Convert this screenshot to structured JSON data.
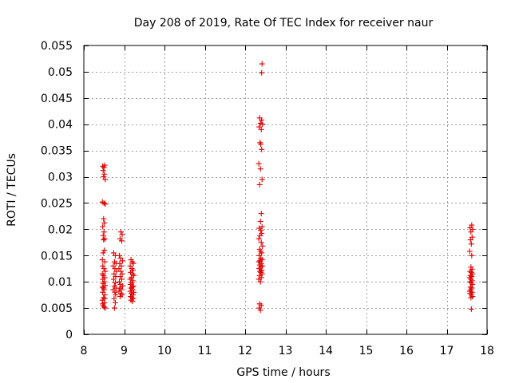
{
  "chart_data": {
    "type": "scatter",
    "title": "Day 208 of 2019, Rate Of TEC Index for receiver naur",
    "xlabel": "GPS time / hours",
    "ylabel": "ROTI / TECUs",
    "xlim": [
      8,
      18
    ],
    "ylim": [
      0,
      0.055
    ],
    "xticks": [
      8,
      9,
      10,
      11,
      12,
      13,
      14,
      15,
      16,
      17,
      18
    ],
    "xtick_labels": [
      "8",
      "9",
      "10",
      "11",
      "12",
      "13",
      "14",
      "15",
      "16",
      "17",
      "18"
    ],
    "yticks": [
      0,
      0.005,
      0.01,
      0.015,
      0.02,
      0.025,
      0.03,
      0.035,
      0.04,
      0.045,
      0.05,
      0.055
    ],
    "ytick_labels": [
      "0",
      "0.005",
      "0.01",
      "0.015",
      "0.02",
      "0.025",
      "0.03",
      "0.035",
      "0.04",
      "0.045",
      "0.05",
      "0.055"
    ],
    "grid": true,
    "marker": "+",
    "color": "#e00000",
    "series": [
      {
        "name": "ROTI",
        "points": [
          [
            8.47,
            0.032
          ],
          [
            8.5,
            0.0318
          ],
          [
            8.52,
            0.0322
          ],
          [
            8.48,
            0.0312
          ],
          [
            8.51,
            0.0305
          ],
          [
            8.53,
            0.0295
          ],
          [
            8.49,
            0.03
          ],
          [
            8.46,
            0.0252
          ],
          [
            8.5,
            0.025
          ],
          [
            8.53,
            0.0248
          ],
          [
            8.49,
            0.022
          ],
          [
            8.51,
            0.0212
          ],
          [
            8.47,
            0.0205
          ],
          [
            8.5,
            0.0195
          ],
          [
            8.48,
            0.0188
          ],
          [
            8.52,
            0.0182
          ],
          [
            8.49,
            0.018
          ],
          [
            8.51,
            0.016
          ],
          [
            8.48,
            0.0155
          ],
          [
            8.46,
            0.0142
          ],
          [
            8.52,
            0.0138
          ],
          [
            8.47,
            0.013
          ],
          [
            8.5,
            0.0125
          ],
          [
            8.53,
            0.012
          ],
          [
            8.46,
            0.0115
          ],
          [
            8.49,
            0.0112
          ],
          [
            8.52,
            0.0108
          ],
          [
            8.47,
            0.0105
          ],
          [
            8.51,
            0.01
          ],
          [
            8.48,
            0.0097
          ],
          [
            8.53,
            0.0093
          ],
          [
            8.46,
            0.009
          ],
          [
            8.5,
            0.0085
          ],
          [
            8.47,
            0.008
          ],
          [
            8.52,
            0.0075
          ],
          [
            8.49,
            0.007
          ],
          [
            8.46,
            0.0065
          ],
          [
            8.51,
            0.006
          ],
          [
            8.48,
            0.0055
          ],
          [
            8.5,
            0.0052
          ],
          [
            8.53,
            0.005
          ],
          [
            8.47,
            0.0058
          ],
          [
            8.52,
            0.0068
          ],
          [
            8.49,
            0.0088
          ],
          [
            8.74,
            0.0155
          ],
          [
            8.78,
            0.015
          ],
          [
            8.76,
            0.0138
          ],
          [
            8.8,
            0.0135
          ],
          [
            8.73,
            0.013
          ],
          [
            8.77,
            0.0125
          ],
          [
            8.81,
            0.012
          ],
          [
            8.75,
            0.0115
          ],
          [
            8.79,
            0.011
          ],
          [
            8.74,
            0.0105
          ],
          [
            8.78,
            0.0098
          ],
          [
            8.76,
            0.0092
          ],
          [
            8.8,
            0.0088
          ],
          [
            8.73,
            0.0085
          ],
          [
            8.77,
            0.008
          ],
          [
            8.79,
            0.0075
          ],
          [
            8.75,
            0.0068
          ],
          [
            8.78,
            0.006
          ],
          [
            8.76,
            0.005
          ],
          [
            8.92,
            0.0195
          ],
          [
            8.95,
            0.019
          ],
          [
            8.9,
            0.0182
          ],
          [
            8.94,
            0.0178
          ],
          [
            8.88,
            0.015
          ],
          [
            8.91,
            0.0145
          ],
          [
            8.96,
            0.014
          ],
          [
            8.89,
            0.0135
          ],
          [
            8.93,
            0.013
          ],
          [
            8.87,
            0.0125
          ],
          [
            8.92,
            0.012
          ],
          [
            8.95,
            0.0115
          ],
          [
            8.9,
            0.011
          ],
          [
            8.94,
            0.0105
          ],
          [
            8.88,
            0.01
          ],
          [
            8.91,
            0.0095
          ],
          [
            8.96,
            0.0092
          ],
          [
            8.89,
            0.0088
          ],
          [
            8.93,
            0.0085
          ],
          [
            8.87,
            0.0082
          ],
          [
            8.92,
            0.0078
          ],
          [
            8.95,
            0.0075
          ],
          [
            8.9,
            0.0072
          ],
          [
            9.17,
            0.0142
          ],
          [
            9.2,
            0.0138
          ],
          [
            9.23,
            0.0135
          ],
          [
            9.15,
            0.013
          ],
          [
            9.19,
            0.0125
          ],
          [
            9.22,
            0.0122
          ],
          [
            9.16,
            0.0118
          ],
          [
            9.21,
            0.0115
          ],
          [
            9.24,
            0.0112
          ],
          [
            9.18,
            0.0108
          ],
          [
            9.15,
            0.0105
          ],
          [
            9.22,
            0.0102
          ],
          [
            9.19,
            0.0098
          ],
          [
            9.16,
            0.0095
          ],
          [
            9.23,
            0.0092
          ],
          [
            9.2,
            0.009
          ],
          [
            9.17,
            0.0088
          ],
          [
            9.21,
            0.0085
          ],
          [
            9.15,
            0.0082
          ],
          [
            9.24,
            0.008
          ],
          [
            9.18,
            0.0078
          ],
          [
            9.22,
            0.0075
          ],
          [
            9.16,
            0.0072
          ],
          [
            9.19,
            0.007
          ],
          [
            9.23,
            0.0068
          ],
          [
            9.17,
            0.0065
          ],
          [
            9.21,
            0.0063
          ],
          [
            12.42,
            0.0515
          ],
          [
            12.41,
            0.0498
          ],
          [
            12.36,
            0.0412
          ],
          [
            12.41,
            0.0408
          ],
          [
            12.38,
            0.0402
          ],
          [
            12.43,
            0.04
          ],
          [
            12.35,
            0.0395
          ],
          [
            12.4,
            0.039
          ],
          [
            12.37,
            0.0365
          ],
          [
            12.39,
            0.0362
          ],
          [
            12.41,
            0.0352
          ],
          [
            12.34,
            0.0325
          ],
          [
            12.38,
            0.0315
          ],
          [
            12.42,
            0.0295
          ],
          [
            12.36,
            0.0285
          ],
          [
            12.4,
            0.023
          ],
          [
            12.38,
            0.0215
          ],
          [
            12.42,
            0.0205
          ],
          [
            12.35,
            0.0202
          ],
          [
            12.39,
            0.0198
          ],
          [
            12.41,
            0.0192
          ],
          [
            12.37,
            0.0188
          ],
          [
            12.34,
            0.0182
          ],
          [
            12.4,
            0.0175
          ],
          [
            12.43,
            0.0168
          ],
          [
            12.36,
            0.0162
          ],
          [
            12.38,
            0.0158
          ],
          [
            12.41,
            0.0155
          ],
          [
            12.35,
            0.015
          ],
          [
            12.39,
            0.0145
          ],
          [
            12.42,
            0.0142
          ],
          [
            12.37,
            0.014
          ],
          [
            12.34,
            0.0138
          ],
          [
            12.4,
            0.0135
          ],
          [
            12.36,
            0.0132
          ],
          [
            12.43,
            0.013
          ],
          [
            12.38,
            0.0128
          ],
          [
            12.35,
            0.0125
          ],
          [
            12.41,
            0.0122
          ],
          [
            12.37,
            0.012
          ],
          [
            12.39,
            0.0118
          ],
          [
            12.42,
            0.0115
          ],
          [
            12.36,
            0.0112
          ],
          [
            12.4,
            0.0108
          ],
          [
            12.34,
            0.0105
          ],
          [
            12.38,
            0.01
          ],
          [
            12.36,
            0.0058
          ],
          [
            12.4,
            0.0055
          ],
          [
            12.35,
            0.005
          ],
          [
            12.38,
            0.0046
          ],
          [
            17.62,
            0.0208
          ],
          [
            17.58,
            0.0203
          ],
          [
            17.64,
            0.02
          ],
          [
            17.6,
            0.0195
          ],
          [
            17.63,
            0.0185
          ],
          [
            17.59,
            0.018
          ],
          [
            17.61,
            0.0172
          ],
          [
            17.57,
            0.0158
          ],
          [
            17.62,
            0.015
          ],
          [
            17.6,
            0.0128
          ],
          [
            17.63,
            0.0124
          ],
          [
            17.58,
            0.012
          ],
          [
            17.61,
            0.0118
          ],
          [
            17.64,
            0.0115
          ],
          [
            17.59,
            0.0112
          ],
          [
            17.62,
            0.011
          ],
          [
            17.57,
            0.0108
          ],
          [
            17.6,
            0.0105
          ],
          [
            17.63,
            0.0102
          ],
          [
            17.58,
            0.01
          ],
          [
            17.61,
            0.0098
          ],
          [
            17.64,
            0.0095
          ],
          [
            17.59,
            0.009
          ],
          [
            17.62,
            0.0088
          ],
          [
            17.6,
            0.0085
          ],
          [
            17.57,
            0.0082
          ],
          [
            17.63,
            0.008
          ],
          [
            17.58,
            0.0078
          ],
          [
            17.61,
            0.0075
          ],
          [
            17.64,
            0.0072
          ],
          [
            17.6,
            0.007
          ],
          [
            17.61,
            0.0048
          ]
        ]
      }
    ]
  }
}
